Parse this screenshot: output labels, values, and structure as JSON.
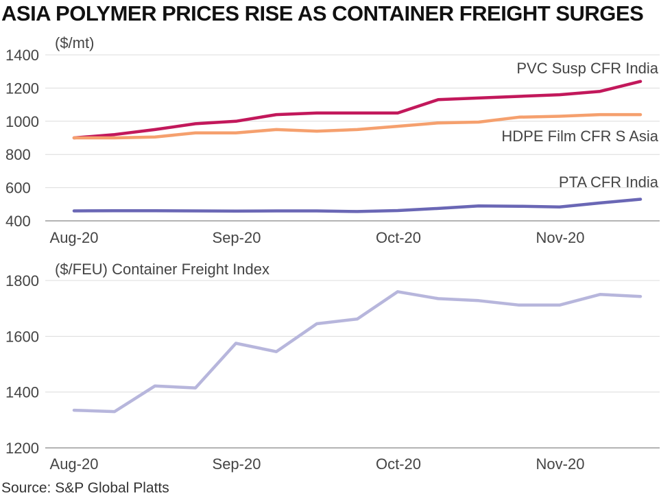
{
  "title": "ASIA POLYMER PRICES RISE AS CONTAINER FREIGHT SURGES",
  "source": "Source: S&P Global Platts",
  "chart_data": [
    {
      "type": "line",
      "unit_label": "($/mt)",
      "x_tick_labels": [
        "Aug-20",
        "Sep-20",
        "Oct-20",
        "Nov-20"
      ],
      "ylim": [
        400,
        1400
      ],
      "y_ticks": [
        400,
        600,
        800,
        1000,
        1200,
        1400
      ],
      "grid": true,
      "x": [
        0,
        1,
        2,
        3,
        4,
        5,
        6,
        7,
        8,
        9,
        10,
        11,
        12,
        13,
        14
      ],
      "series": [
        {
          "name": "PVC Susp CFR India",
          "color": "#c2185b",
          "values": [
            900,
            920,
            950,
            985,
            1000,
            1040,
            1050,
            1050,
            1050,
            1130,
            1140,
            1150,
            1160,
            1180,
            1240
          ]
        },
        {
          "name": "HDPE Film CFR S Asia",
          "color": "#f5a06e",
          "values": [
            900,
            900,
            905,
            930,
            930,
            950,
            940,
            950,
            970,
            990,
            995,
            1025,
            1030,
            1040,
            1040
          ]
        },
        {
          "name": "PTA CFR India",
          "color": "#6a67b5",
          "values": [
            460,
            461,
            461,
            460,
            459,
            460,
            460,
            456,
            462,
            475,
            490,
            488,
            484,
            508,
            530
          ]
        }
      ]
    },
    {
      "type": "line",
      "unit_label": "($/FEU) Container Freight Index",
      "x_tick_labels": [
        "Aug-20",
        "Sep-20",
        "Oct-20",
        "Nov-20"
      ],
      "ylim": [
        1200,
        1800
      ],
      "y_ticks": [
        1200,
        1400,
        1600,
        1800
      ],
      "grid": true,
      "x": [
        0,
        1,
        2,
        3,
        4,
        5,
        6,
        7,
        8,
        9,
        10,
        11,
        12,
        13,
        14
      ],
      "series": [
        {
          "color": "#b7b6dc",
          "values": [
            1335,
            1330,
            1422,
            1415,
            1575,
            1545,
            1645,
            1662,
            1760,
            1735,
            1728,
            1712,
            1712,
            1750,
            1743
          ]
        }
      ]
    }
  ]
}
